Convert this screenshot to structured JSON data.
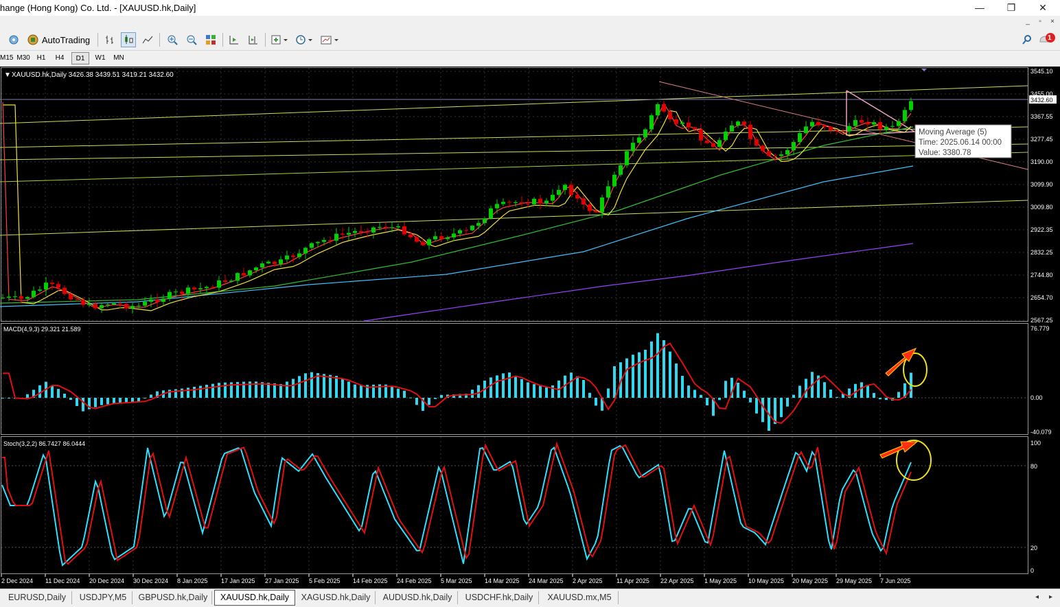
{
  "window": {
    "title": "hange (Hong Kong) Co. Ltd. - [XAUUSD.hk,Daily]",
    "minimize_label": "—",
    "maximize_label": "❐",
    "close_label": "✕"
  },
  "toolbar": {
    "autotrading_label": "AutoTrading",
    "notification_count": "1"
  },
  "timeframes": [
    "M15",
    "M30",
    "H1",
    "H4",
    "D1",
    "W1",
    "MN"
  ],
  "active_timeframe": "D1",
  "chart": {
    "header": "XAUUSD.hk,Daily  3426.38 3439.51 3419.21 3432.60",
    "current_price": "3432.60",
    "price_axis_labels": [
      "3545.10",
      "3455.00",
      "3367.55",
      "3277.45",
      "3190.00",
      "3099.90",
      "3009.80",
      "2922.35",
      "2832.25",
      "2744.80",
      "2654.70",
      "2567.25"
    ],
    "date_labels": [
      "2 Dec 2024",
      "11 Dec 2024",
      "20 Dec 2024",
      "30 Dec 2024",
      "8 Jan 2025",
      "17 Jan 2025",
      "27 Jan 2025",
      "5 Feb 2025",
      "14 Feb 2025",
      "24 Feb 2025",
      "5 Mar 2025",
      "14 Mar 2025",
      "24 Mar 2025",
      "2 Apr 2025",
      "11 Apr 2025",
      "22 Apr 2025",
      "1 May 2025",
      "10 May 2025",
      "20 May 2025",
      "29 May 2025",
      "7 Jun 2025"
    ],
    "tooltip": {
      "title": "Moving Average (5)",
      "time": "Time: 2025.06.14 00:00",
      "value": "Value: 3380.78"
    },
    "macd": {
      "header": "MACD(4,9,3) 29.321 21.589",
      "axis_labels": [
        "76.779",
        "0.00",
        "-40.079"
      ]
    },
    "stoch": {
      "header": "Stoch(3,2,2) 86.7427 86.0444",
      "axis_labels": [
        "100",
        "80",
        "20",
        "0"
      ]
    },
    "colors": {
      "background": "#000000",
      "bull": "#00d000",
      "bear": "#e00000",
      "macd_hist": "#30d8f0",
      "signal": "#e01010",
      "grid": "#3a3a3a"
    }
  },
  "tabs": [
    "EURUSD,Daily",
    "USDJPY,M5",
    "GBPUSD.hk,Daily",
    "XAUUSD.hk,Daily",
    "XAGUSD.hk,Daily",
    "AUDUSD.hk,Daily",
    "USDCHF.hk,Daily",
    "XAUUSD.mx,M5"
  ],
  "active_tab": "XAUUSD.hk,Daily"
}
